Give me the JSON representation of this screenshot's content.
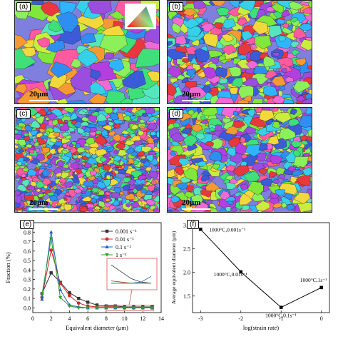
{
  "figure": {
    "panels": [
      {
        "label": "(a)",
        "scale": "20μm",
        "seed": 11,
        "cells": 90
      },
      {
        "label": "(b)",
        "scale": "20μm",
        "seed": 23,
        "cells": 260
      },
      {
        "label": "(c)",
        "scale": "20μm",
        "seed": 37,
        "cells": 700
      },
      {
        "label": "(d)",
        "scale": "20μm",
        "seed": 51,
        "cells": 300
      }
    ],
    "ipf_key": "inverse-pole-figure-color-key"
  },
  "chart_data": [
    {
      "panel": "(e)",
      "type": "line",
      "xlabel": "Equivalent diameter (μm)",
      "ylabel": "Fraction (%)",
      "xlim": [
        0,
        14
      ],
      "ylim": [
        -0.05,
        0.9
      ],
      "xticks": [
        0,
        2,
        4,
        6,
        8,
        10,
        12,
        14
      ],
      "yticks": [
        0.0,
        0.1,
        0.2,
        0.3,
        0.4,
        0.5,
        0.6,
        0.7,
        0.8
      ],
      "x": [
        1,
        2,
        3,
        4,
        5,
        6,
        7,
        8,
        9,
        10,
        11,
        12,
        13
      ],
      "series": [
        {
          "name": "0.001 s⁻¹",
          "color": "#333333",
          "marker": "square",
          "values": [
            0.15,
            0.37,
            0.27,
            0.16,
            0.1,
            0.06,
            0.03,
            0.02,
            0.02,
            0.01,
            0.01,
            0.01,
            0.01
          ]
        },
        {
          "name": "0.01 s⁻¹",
          "color": "#d62728",
          "marker": "circle",
          "values": [
            0.11,
            0.61,
            0.26,
            0.13,
            0.05,
            0.02,
            0.01,
            0.01,
            0.01,
            0.0,
            0.0,
            0.0,
            0.0
          ]
        },
        {
          "name": "0.1 s⁻¹",
          "color": "#1f5fbf",
          "marker": "triangle",
          "values": [
            0.09,
            0.8,
            0.19,
            0.03,
            0.01,
            0.0,
            0.0,
            0.0,
            0.0,
            0.0,
            0.0,
            0.0,
            0.0
          ]
        },
        {
          "name": "1 s⁻¹",
          "color": "#2ca02c",
          "marker": "triangle-down",
          "values": [
            0.14,
            0.73,
            0.11,
            0.02,
            0.0,
            0.0,
            0.0,
            0.0,
            0.0,
            0.0,
            0.0,
            0.0,
            0.0
          ]
        }
      ],
      "inset": "zoom of 8–13 μm tail",
      "grid": false,
      "legend": "top-right"
    },
    {
      "panel": "(f)",
      "type": "line",
      "xlabel": "log(strain rate)",
      "ylabel": "Average equivalent diameter (μm)",
      "xlim": [
        -3.2,
        0.2
      ],
      "ylim": [
        1.15,
        3.05
      ],
      "xticks": [
        -3,
        -2,
        -1,
        0
      ],
      "yticks": [
        1.5,
        2.0,
        2.5,
        3.0
      ],
      "x": [
        -3,
        -2,
        -1,
        0
      ],
      "series": [
        {
          "color": "#000000",
          "marker": "square",
          "values": [
            2.91,
            2.01,
            1.26,
            1.68
          ]
        }
      ],
      "annotations": [
        "1000°C,0.001s⁻¹",
        "1000°C,0.01s⁻¹",
        "1000°C,0.1s⁻¹",
        "1000°C,1s⁻¹"
      ],
      "grid": false
    }
  ]
}
